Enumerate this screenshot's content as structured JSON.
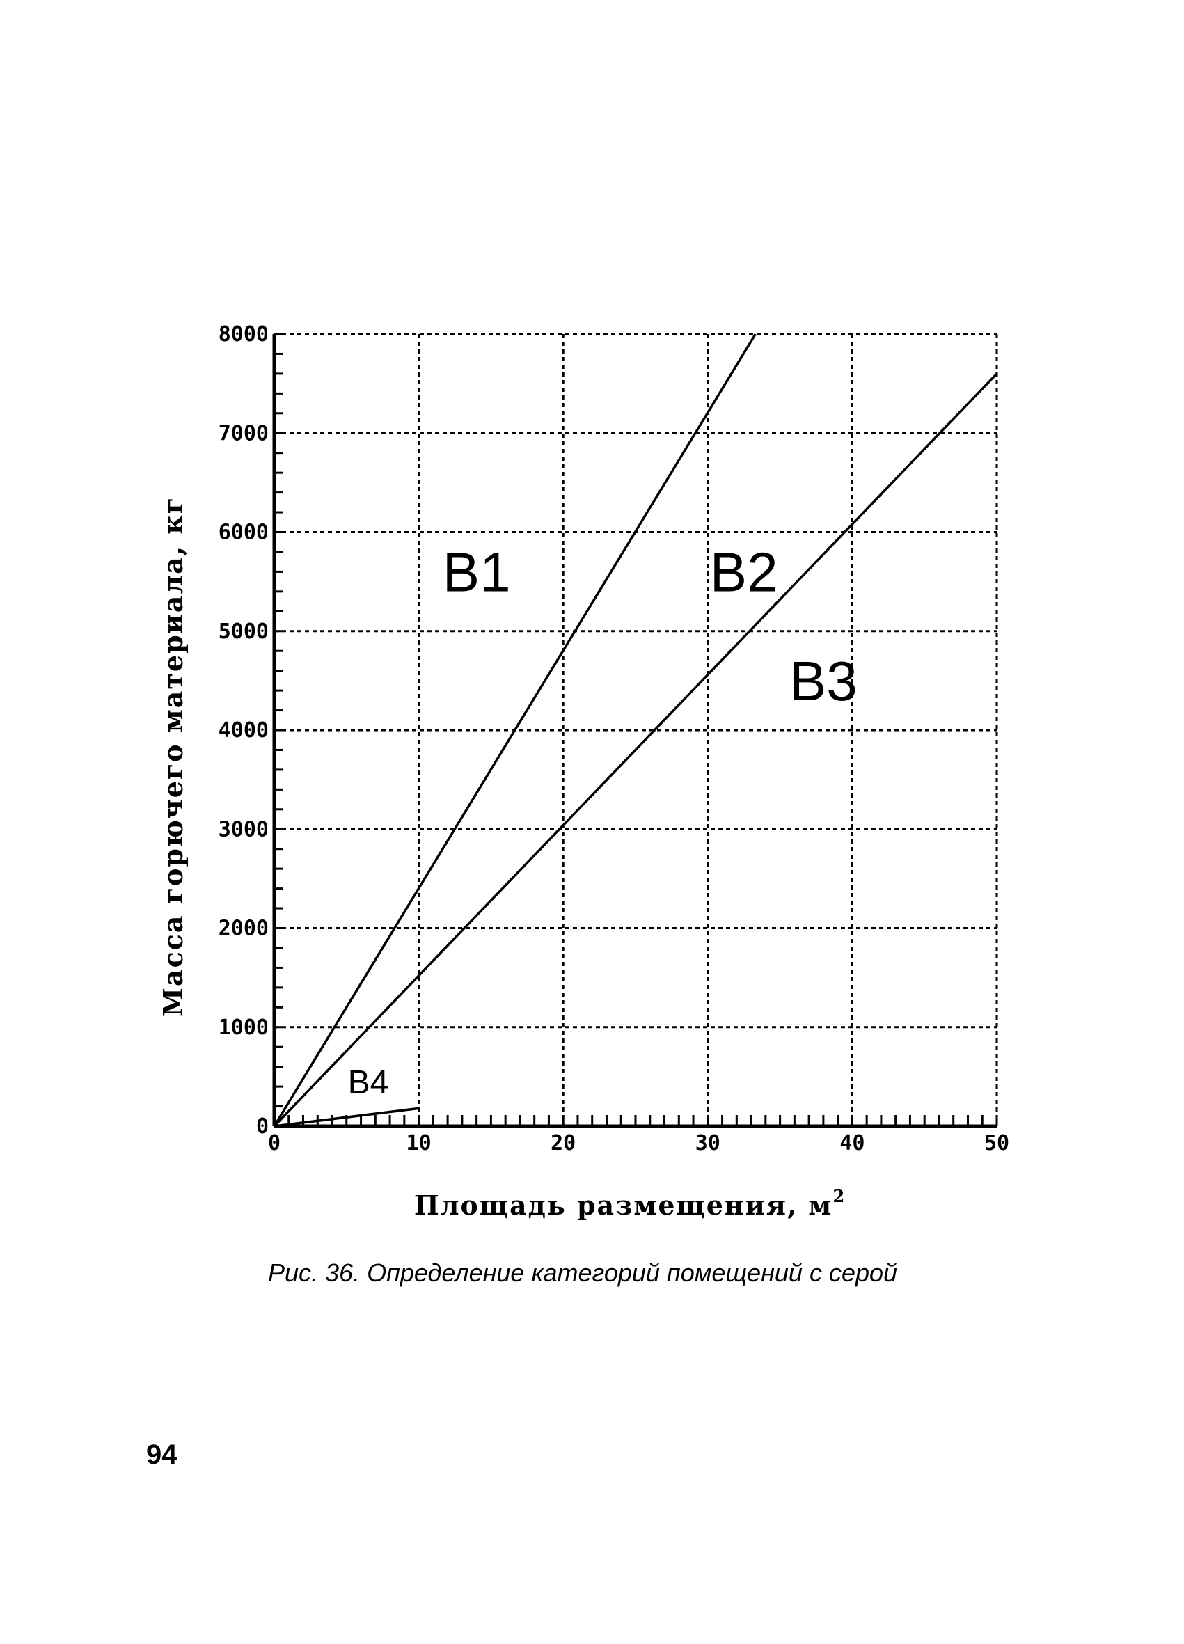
{
  "chart_data": {
    "type": "line",
    "title": "",
    "xlabel": "Площадь размещения, м",
    "xlabel_sup": "2",
    "ylabel": "Масса горючего материала, кг",
    "xlim": [
      0,
      50
    ],
    "ylim": [
      0,
      8000
    ],
    "x_ticks": [
      0,
      10,
      20,
      30,
      40,
      50
    ],
    "y_ticks": [
      0,
      1000,
      2000,
      3000,
      4000,
      5000,
      6000,
      7000,
      8000
    ],
    "x_tick_labels": [
      "0",
      "10",
      "20",
      "30",
      "40",
      "50"
    ],
    "y_tick_labels": [
      "0",
      "1000",
      "2000",
      "3000",
      "4000",
      "5000",
      "6000",
      "7000",
      "8000"
    ],
    "grid": true,
    "series": [
      {
        "x": [
          0,
          33.3
        ],
        "y": [
          0,
          8000
        ]
      },
      {
        "x": [
          0,
          50
        ],
        "y": [
          0,
          7600
        ]
      },
      {
        "x": [
          0,
          10
        ],
        "y": [
          0,
          180
        ]
      }
    ],
    "region_labels": [
      {
        "text": "В1",
        "x": 14,
        "y": 5550,
        "size": "large"
      },
      {
        "text": "В2",
        "x": 32.5,
        "y": 5550,
        "size": "large"
      },
      {
        "text": "В3",
        "x": 38,
        "y": 4450,
        "size": "large"
      },
      {
        "text": "В4",
        "x": 6.5,
        "y": 420,
        "size": "small"
      }
    ]
  },
  "caption": "Рис. 36. Определение категорий помещений с серой",
  "page_number": "94"
}
